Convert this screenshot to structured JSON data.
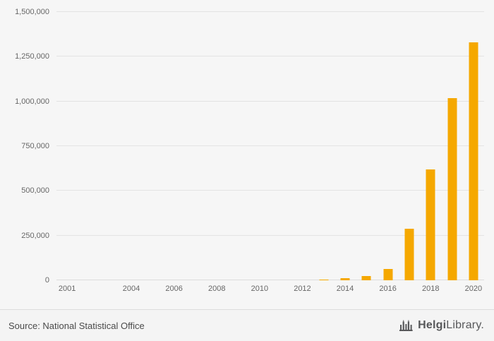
{
  "footer": {
    "source": "Source: National Statistical Office",
    "logo_bold": "Helgi",
    "logo_rest": "Library."
  },
  "colors": {
    "background": "#f6f6f6",
    "gridline": "#e3e3e3",
    "axis_text": "#666666",
    "bar": "#F5A800",
    "logo_text": "#57585a"
  },
  "chart_data": {
    "type": "bar",
    "title": "",
    "xlabel": "",
    "ylabel": "",
    "categories": [
      "2001",
      "2002",
      "2003",
      "2004",
      "2005",
      "2006",
      "2007",
      "2008",
      "2009",
      "2010",
      "2011",
      "2012",
      "2013",
      "2014",
      "2015",
      "2016",
      "2017",
      "2018",
      "2019",
      "2020"
    ],
    "values": [
      0,
      0,
      0,
      0,
      0,
      0,
      0,
      0,
      0,
      0,
      0,
      0,
      5000,
      10000,
      25000,
      65000,
      290000,
      620000,
      1020000,
      1330000
    ],
    "x_tick_labels": [
      "2001",
      "",
      "",
      "2004",
      "",
      "2006",
      "",
      "2008",
      "",
      "2010",
      "",
      "2012",
      "",
      "2014",
      "",
      "2016",
      "",
      "2018",
      "",
      "2020"
    ],
    "ylim": [
      0,
      1500000
    ],
    "ytick_step": 250000,
    "y_tick_labels": [
      "0",
      "250,000",
      "500,000",
      "750,000",
      "1,000,000",
      "1,250,000",
      "1,500,000"
    ],
    "bar_color": "#F5A800",
    "grid": true,
    "legend": false
  }
}
